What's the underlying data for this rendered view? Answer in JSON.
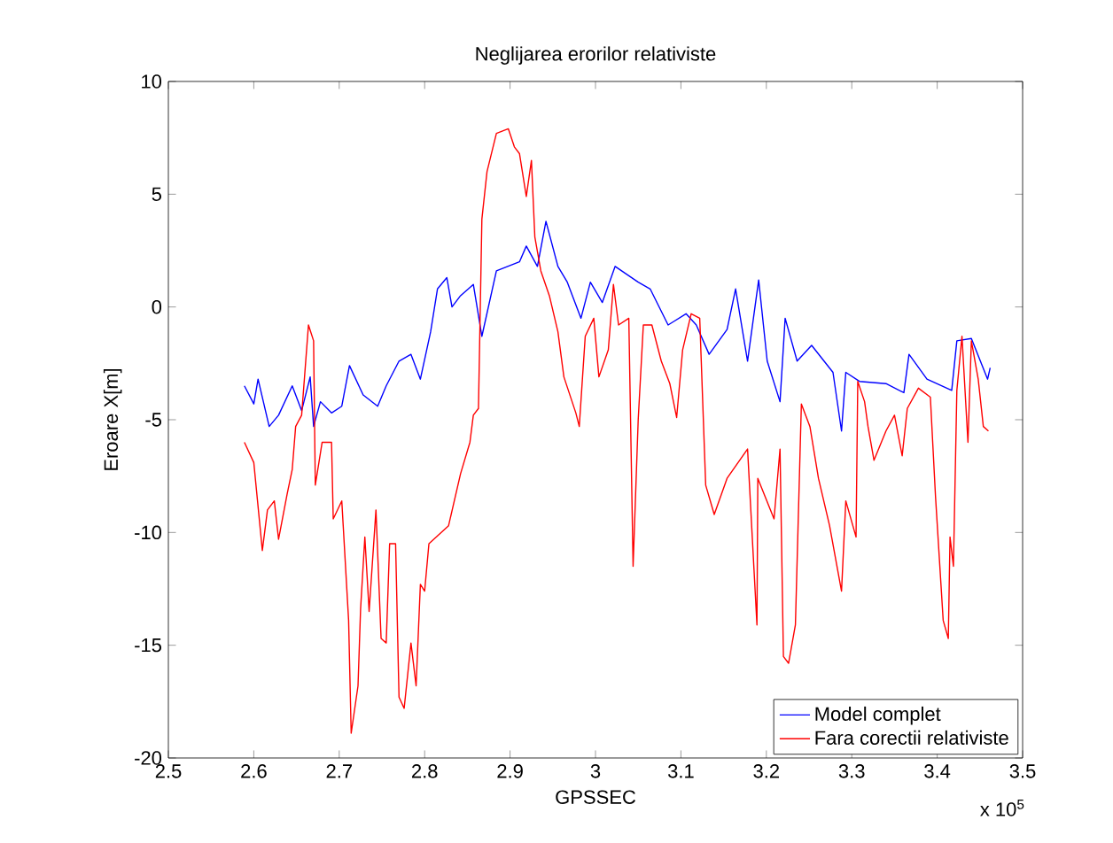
{
  "chart_data": {
    "type": "line",
    "title": "Neglijarea erorilor relativiste",
    "xlabel": "GPSSEC",
    "ylabel": "Eroare X[m]",
    "annotations": [
      "x 10$^{5}$"
    ],
    "xlim": [
      2.5,
      3.5
    ],
    "ylim": [
      -20,
      10
    ],
    "xticks": [
      2.5,
      2.6,
      2.7,
      2.8,
      2.9,
      3,
      3.1,
      3.2,
      3.3,
      3.4,
      3.5
    ],
    "yticks": [
      -20,
      -15,
      -10,
      -5,
      0,
      5,
      10
    ],
    "legend": "bottom right",
    "grid": false,
    "marker": "none",
    "line_style": "solid",
    "series": [
      {
        "name": "Model complet",
        "color": "#0000ff",
        "x": [
          2.589,
          2.6,
          2.605,
          2.618,
          2.629,
          2.645,
          2.656,
          2.666,
          2.67,
          2.678,
          2.691,
          2.703,
          2.712,
          2.728,
          2.745,
          2.755,
          2.77,
          2.784,
          2.795,
          2.807,
          2.815,
          2.826,
          2.832,
          2.842,
          2.857,
          2.867,
          2.884,
          2.911,
          2.919,
          2.932,
          2.942,
          2.956,
          2.967,
          2.983,
          2.994,
          3.008,
          3.023,
          3.05,
          3.064,
          3.085,
          3.106,
          3.118,
          3.133,
          3.154,
          3.164,
          3.178,
          3.191,
          3.201,
          3.216,
          3.222,
          3.236,
          3.253,
          3.278,
          3.288,
          3.293,
          3.309,
          3.34,
          3.361,
          3.367,
          3.388,
          3.417,
          3.423,
          3.44,
          3.459,
          3.462
        ],
        "values": [
          -3.5,
          -4.3,
          -3.2,
          -5.3,
          -4.8,
          -3.5,
          -4.6,
          -3.1,
          -5.3,
          -4.2,
          -4.7,
          -4.4,
          -2.6,
          -3.9,
          -4.4,
          -3.5,
          -2.4,
          -2.1,
          -3.2,
          -1.1,
          0.8,
          1.3,
          0.0,
          0.5,
          1.0,
          -1.3,
          1.6,
          2.0,
          2.7,
          1.8,
          3.8,
          1.8,
          1.1,
          -0.5,
          1.1,
          0.2,
          1.8,
          1.1,
          0.8,
          -0.8,
          -0.3,
          -0.8,
          -2.1,
          -1.0,
          0.8,
          -2.4,
          1.2,
          -2.4,
          -4.2,
          -0.5,
          -2.4,
          -1.7,
          -2.9,
          -5.5,
          -2.9,
          -3.3,
          -3.4,
          -3.8,
          -2.1,
          -3.2,
          -3.7,
          -1.5,
          -1.4,
          -3.2,
          -2.7
        ]
      },
      {
        "name": "Fara corectii relativiste",
        "color": "#ff0000",
        "x": [
          2.589,
          2.6,
          2.61,
          2.616,
          2.624,
          2.629,
          2.639,
          2.645,
          2.649,
          2.656,
          2.664,
          2.67,
          2.672,
          2.68,
          2.691,
          2.693,
          2.703,
          2.711,
          2.714,
          2.722,
          2.725,
          2.73,
          2.735,
          2.743,
          2.749,
          2.755,
          2.759,
          2.766,
          2.77,
          2.776,
          2.784,
          2.79,
          2.795,
          2.8,
          2.805,
          2.828,
          2.842,
          2.853,
          2.857,
          2.863,
          2.867,
          2.873,
          2.884,
          2.898,
          2.905,
          2.911,
          2.919,
          2.925,
          2.929,
          2.936,
          2.946,
          2.956,
          2.963,
          2.977,
          2.981,
          2.988,
          2.998,
          3.004,
          3.015,
          3.021,
          3.027,
          3.039,
          3.044,
          3.05,
          3.056,
          3.066,
          3.077,
          3.087,
          3.095,
          3.102,
          3.112,
          3.122,
          3.129,
          3.139,
          3.154,
          3.178,
          3.189,
          3.19,
          3.209,
          3.216,
          3.22,
          3.226,
          3.234,
          3.241,
          3.251,
          3.261,
          3.274,
          3.288,
          3.293,
          3.305,
          3.307,
          3.315,
          3.319,
          3.326,
          3.34,
          3.35,
          3.359,
          3.365,
          3.378,
          3.392,
          3.398,
          3.407,
          3.413,
          3.415,
          3.419,
          3.423,
          3.429,
          3.436,
          3.44,
          3.448,
          3.454,
          3.46
        ],
        "values": [
          -6.0,
          -6.9,
          -10.8,
          -9.0,
          -8.6,
          -10.3,
          -8.3,
          -7.2,
          -5.3,
          -4.8,
          -0.8,
          -1.5,
          -7.9,
          -6.0,
          -6.0,
          -9.4,
          -8.6,
          -13.9,
          -18.9,
          -16.8,
          -13.4,
          -10.2,
          -13.5,
          -9.0,
          -14.7,
          -14.9,
          -10.5,
          -10.5,
          -17.3,
          -17.8,
          -14.9,
          -16.8,
          -12.3,
          -12.6,
          -10.5,
          -9.7,
          -7.4,
          -6.0,
          -4.8,
          -4.5,
          3.9,
          6.0,
          7.7,
          7.9,
          7.1,
          6.8,
          4.9,
          6.5,
          3.1,
          1.6,
          0.5,
          -1.1,
          -3.1,
          -4.7,
          -5.3,
          -1.3,
          -0.5,
          -3.1,
          -1.9,
          1.0,
          -0.8,
          -0.5,
          -11.5,
          -5.0,
          -0.8,
          -0.8,
          -2.4,
          -3.4,
          -4.9,
          -1.9,
          -0.3,
          -0.5,
          -7.9,
          -9.2,
          -7.6,
          -6.3,
          -14.1,
          -7.6,
          -9.4,
          -6.3,
          -15.5,
          -15.8,
          -14.1,
          -4.3,
          -5.3,
          -7.6,
          -9.7,
          -12.6,
          -8.6,
          -10.2,
          -3.3,
          -4.2,
          -5.3,
          -6.8,
          -5.5,
          -4.8,
          -6.6,
          -4.5,
          -3.6,
          -4.0,
          -8.4,
          -13.9,
          -14.7,
          -10.2,
          -11.5,
          -3.7,
          -1.3,
          -6.0,
          -1.5,
          -3.2,
          -5.3,
          -5.5
        ]
      }
    ]
  }
}
